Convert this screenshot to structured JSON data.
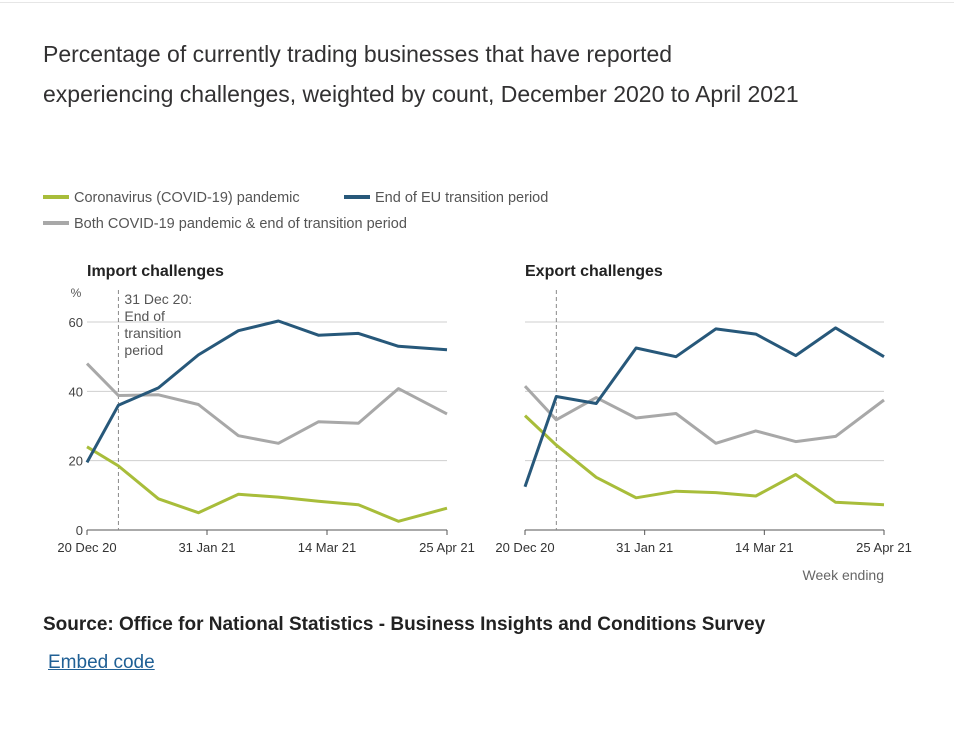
{
  "title": "Percentage of currently trading businesses that have reported experiencing challenges, weighted by count, December 2020 to April 2021",
  "legend": [
    {
      "label": "Coronavirus (COVID-19) pandemic",
      "color": "#a8bd3a"
    },
    {
      "label": "End of EU transition period",
      "color": "#27587a"
    },
    {
      "label": "Both COVID-19 pandemic & end of transition period",
      "color": "#a8a8a8"
    }
  ],
  "source": "Source: Office for National Statistics - Business Insights and Conditions Survey",
  "embed_label": "Embed code",
  "chart_data": [
    {
      "type": "line",
      "title": "Import challenges",
      "ylabel": "%",
      "xlabel": "",
      "ylim": [
        0,
        60
      ],
      "yticks": [
        0,
        20,
        40,
        60
      ],
      "x": [
        "2020-12-20",
        "2021-01-03",
        "2021-01-17",
        "2021-01-31",
        "2021-02-14",
        "2021-02-28",
        "2021-03-14",
        "2021-03-28",
        "2021-04-11",
        "2021-04-25"
      ],
      "xticks": [
        "20 Dec 20",
        "31 Jan 21",
        "14 Mar 21",
        "25 Apr 21"
      ],
      "xtick_dates": [
        "2020-12-20",
        "2021-01-31",
        "2021-03-14",
        "2021-04-25"
      ],
      "annotation": {
        "date": "2020-12-31",
        "label": [
          "31 Dec 20:",
          "End of",
          "transition",
          "period"
        ]
      },
      "grid": true,
      "series": [
        {
          "name": "Coronavirus (COVID-19) pandemic",
          "x": [
            "2020-12-20",
            "2020-12-31",
            "2021-01-14",
            "2021-01-28",
            "2021-02-11",
            "2021-02-25",
            "2021-03-11",
            "2021-03-25",
            "2021-04-08",
            "2021-04-25"
          ],
          "values": [
            24,
            18.5,
            9,
            5,
            10.3,
            9.5,
            8.3,
            7.3,
            2.5,
            6.3
          ]
        },
        {
          "name": "End of EU transition period",
          "x": [
            "2020-12-20",
            "2020-12-31",
            "2021-01-14",
            "2021-01-28",
            "2021-02-11",
            "2021-02-25",
            "2021-03-11",
            "2021-03-25",
            "2021-04-08",
            "2021-04-25"
          ],
          "values": [
            19.5,
            36,
            41,
            50.5,
            57.5,
            60.3,
            56.2,
            56.7,
            53,
            52
          ]
        },
        {
          "name": "Both COVID-19 pandemic & end of transition period",
          "x": [
            "2020-12-20",
            "2020-12-31",
            "2021-01-14",
            "2021-01-28",
            "2021-02-11",
            "2021-02-25",
            "2021-03-11",
            "2021-03-25",
            "2021-04-08",
            "2021-04-25"
          ],
          "values": [
            48,
            38.8,
            39,
            36.2,
            27.2,
            25,
            31.2,
            30.8,
            40.8,
            33.5
          ]
        }
      ]
    },
    {
      "type": "line",
      "title": "Export challenges",
      "ylabel": "",
      "xlabel": "Week ending",
      "ylim": [
        0,
        60
      ],
      "xticks": [
        "20 Dec 20",
        "31 Jan 21",
        "14 Mar 21",
        "25 Apr 21"
      ],
      "xtick_dates": [
        "2020-12-20",
        "2021-01-31",
        "2021-03-14",
        "2021-04-25"
      ],
      "annotation": {
        "date": "2020-12-31",
        "label": []
      },
      "grid": true,
      "series": [
        {
          "name": "Coronavirus (COVID-19) pandemic",
          "x": [
            "2020-12-20",
            "2020-12-31",
            "2021-01-14",
            "2021-01-28",
            "2021-02-11",
            "2021-02-25",
            "2021-03-11",
            "2021-03-25",
            "2021-04-08",
            "2021-04-25"
          ],
          "values": [
            33,
            24.5,
            15.2,
            9.3,
            11.2,
            10.8,
            9.8,
            16,
            8,
            7.3
          ]
        },
        {
          "name": "End of EU transition period",
          "x": [
            "2020-12-20",
            "2020-12-31",
            "2021-01-14",
            "2021-01-28",
            "2021-02-11",
            "2021-02-25",
            "2021-03-11",
            "2021-03-25",
            "2021-04-08",
            "2021-04-25"
          ],
          "values": [
            12.5,
            38.5,
            36.5,
            52.5,
            50,
            58,
            56.5,
            50.3,
            58.3,
            50
          ]
        },
        {
          "name": "Both COVID-19 pandemic & end of transition period",
          "x": [
            "2020-12-20",
            "2020-12-31",
            "2021-01-14",
            "2021-01-28",
            "2021-02-11",
            "2021-02-25",
            "2021-03-11",
            "2021-03-25",
            "2021-04-08",
            "2021-04-25"
          ],
          "values": [
            41.5,
            31.8,
            38.2,
            32.3,
            33.6,
            25,
            28.6,
            25.5,
            27,
            37.5
          ]
        }
      ]
    }
  ]
}
